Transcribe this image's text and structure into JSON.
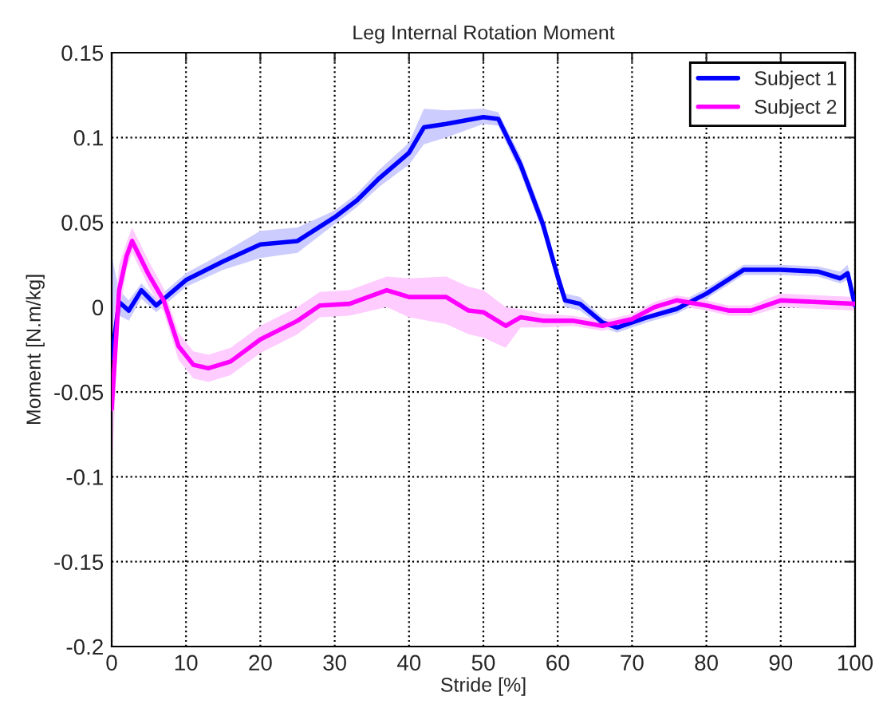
{
  "chart_data": {
    "type": "line",
    "title": "Leg Internal Rotation Moment",
    "xlabel": "Stride [%]",
    "ylabel": "Moment [N.m/kg]",
    "xlim": [
      0,
      100
    ],
    "xticks": [
      0,
      10,
      20,
      30,
      40,
      50,
      60,
      70,
      80,
      90,
      100
    ],
    "ylim": [
      -0.2,
      0.15
    ],
    "yticks": [
      -0.2,
      -0.15,
      -0.1,
      -0.05,
      0,
      0.05,
      0.1,
      0.15
    ],
    "grid": true,
    "legend": "top right",
    "line_style": "solid",
    "marker": "none",
    "series": [
      {
        "name": "Subject 1",
        "color": "#0000ff",
        "x": [
          0,
          1,
          2.3,
          4,
          6,
          10,
          15,
          20,
          25,
          30,
          33,
          36,
          40,
          42,
          45,
          50,
          52,
          55,
          58,
          60,
          61,
          63,
          66,
          68,
          72,
          76,
          80,
          85,
          90,
          95,
          98,
          99,
          100
        ],
        "values": [
          -0.03,
          0.003,
          -0.002,
          0.01,
          0.001,
          0.016,
          0.027,
          0.037,
          0.039,
          0.053,
          0.063,
          0.076,
          0.091,
          0.106,
          0.108,
          0.112,
          0.111,
          0.084,
          0.049,
          0.018,
          0.004,
          0.002,
          -0.009,
          -0.012,
          -0.006,
          -0.001,
          0.008,
          0.022,
          0.022,
          0.021,
          0.017,
          0.02,
          0.001
        ],
        "lower": [
          -0.06,
          -0.005,
          -0.008,
          0.005,
          -0.003,
          0.012,
          0.022,
          0.029,
          0.032,
          0.049,
          0.059,
          0.071,
          0.084,
          0.096,
          0.1,
          0.108,
          0.107,
          0.079,
          0.044,
          0.013,
          0.0,
          -0.002,
          -0.012,
          -0.015,
          -0.009,
          -0.004,
          0.005,
          0.019,
          0.019,
          0.018,
          0.014,
          0.016,
          -0.003
        ],
        "upper": [
          0.03,
          0.01,
          0.004,
          0.014,
          0.005,
          0.02,
          0.032,
          0.045,
          0.047,
          0.057,
          0.067,
          0.081,
          0.097,
          0.117,
          0.116,
          0.117,
          0.115,
          0.089,
          0.054,
          0.023,
          0.008,
          0.006,
          -0.006,
          -0.009,
          -0.003,
          0.002,
          0.011,
          0.025,
          0.025,
          0.024,
          0.021,
          0.025,
          0.005
        ]
      },
      {
        "name": "Subject 2",
        "color": "#ff00ff",
        "x": [
          0,
          1,
          2,
          2.75,
          5,
          7,
          9,
          11,
          13,
          16,
          20,
          25,
          28,
          32,
          37,
          40,
          45,
          48,
          50,
          53,
          55,
          58,
          62,
          66,
          70,
          73,
          76,
          80,
          83,
          86,
          90,
          95,
          100
        ],
        "values": [
          -0.06,
          0.01,
          0.03,
          0.039,
          0.019,
          0.004,
          -0.023,
          -0.034,
          -0.036,
          -0.032,
          -0.019,
          -0.008,
          0.001,
          0.002,
          0.01,
          0.006,
          0.006,
          -0.002,
          -0.003,
          -0.011,
          -0.006,
          -0.008,
          -0.008,
          -0.011,
          -0.007,
          0.0,
          0.004,
          0.001,
          -0.002,
          -0.002,
          0.004,
          0.003,
          0.002
        ],
        "lower": [
          -0.1,
          -0.005,
          0.022,
          0.032,
          0.012,
          -0.003,
          -0.031,
          -0.042,
          -0.044,
          -0.04,
          -0.027,
          -0.016,
          -0.006,
          -0.005,
          0.0,
          -0.006,
          -0.01,
          -0.016,
          -0.018,
          -0.024,
          -0.012,
          -0.012,
          -0.011,
          -0.014,
          -0.01,
          -0.003,
          0.001,
          -0.002,
          -0.005,
          -0.005,
          0.0,
          -0.001,
          -0.002
        ],
        "upper": [
          -0.02,
          0.025,
          0.038,
          0.047,
          0.027,
          0.011,
          -0.015,
          -0.026,
          -0.028,
          -0.024,
          -0.011,
          0.0,
          0.009,
          0.01,
          0.018,
          0.017,
          0.018,
          0.012,
          0.01,
          0.0,
          -0.001,
          -0.004,
          -0.005,
          -0.008,
          -0.004,
          0.003,
          0.007,
          0.004,
          0.001,
          0.001,
          0.008,
          0.007,
          0.006
        ]
      }
    ]
  }
}
